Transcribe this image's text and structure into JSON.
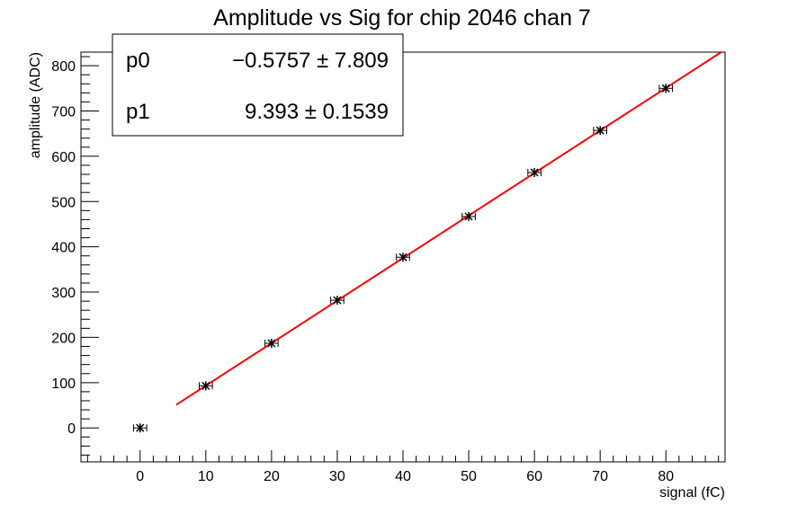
{
  "chart_data": {
    "type": "scatter",
    "title": "Amplitude vs Sig for chip 2046 chan 7",
    "xlabel": "signal (fC)",
    "ylabel": "amplitude (ADC)",
    "xlim": [
      -9,
      89
    ],
    "ylim": [
      -75,
      830
    ],
    "xticks": [
      0,
      10,
      20,
      30,
      40,
      50,
      60,
      70,
      80
    ],
    "yticks": [
      0,
      100,
      200,
      300,
      400,
      500,
      600,
      700,
      800
    ],
    "grid": false,
    "points": {
      "x": [
        0,
        10,
        20,
        30,
        40,
        50,
        60,
        70,
        80
      ],
      "y": [
        0,
        93,
        187,
        282,
        377,
        467,
        564,
        657,
        750
      ],
      "xerr": 1,
      "yerr": 5,
      "marker": "star",
      "color": "#000000"
    },
    "fit": {
      "name": "linear fit",
      "x_range": [
        5.5,
        88.5
      ],
      "p0": -0.5757,
      "p1": 9.393,
      "color": "#ff0000"
    },
    "stats": [
      {
        "name": "p0",
        "value": "−0.5757 ± 7.809"
      },
      {
        "name": "p1",
        "value": "9.393 ± 0.1539"
      }
    ]
  }
}
